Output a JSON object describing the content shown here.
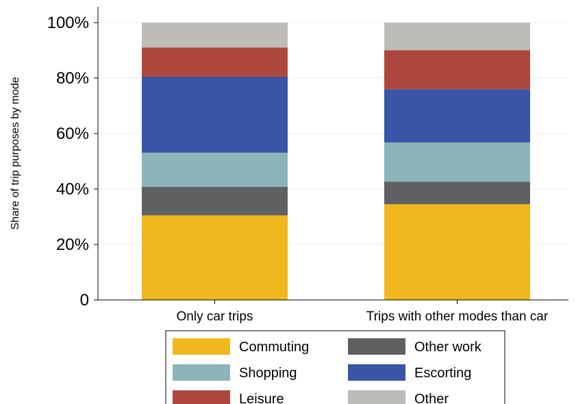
{
  "chart_data": {
    "type": "bar",
    "stacked": true,
    "title": "",
    "xlabel": "",
    "ylabel": "Share of trip purposes by mode",
    "ylim": [
      0,
      100
    ],
    "yticks": [
      0,
      20,
      40,
      60,
      80,
      100
    ],
    "ytick_labels": [
      "0",
      "20%",
      "40%",
      "60%",
      "80%",
      "100%"
    ],
    "grid": true,
    "legend_position": "bottom",
    "categories": [
      "Only car trips",
      "Trips with other modes than car"
    ],
    "series": [
      {
        "name": "Commuting",
        "color": "#f0b81e",
        "values": [
          30.5,
          34.5
        ]
      },
      {
        "name": "Other work",
        "color": "#5e6062",
        "values": [
          10.3,
          8.1
        ]
      },
      {
        "name": "Shopping",
        "color": "#8cb4b9",
        "values": [
          12.3,
          14.2
        ]
      },
      {
        "name": "Escorting",
        "color": "#3a55a5",
        "values": [
          27.4,
          19.2
        ]
      },
      {
        "name": "Leisure",
        "color": "#ad473e",
        "values": [
          10.5,
          14.0
        ]
      },
      {
        "name": "Other",
        "color": "#bebcb6",
        "values": [
          9.0,
          10.0
        ]
      }
    ],
    "legend_order": [
      "Commuting",
      "Other work",
      "Shopping",
      "Escorting",
      "Leisure",
      "Other"
    ]
  }
}
